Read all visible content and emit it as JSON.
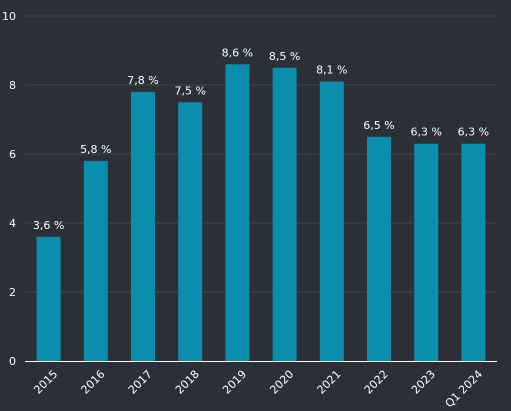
{
  "chart_data": {
    "type": "bar",
    "categories": [
      "2015",
      "2016",
      "2017",
      "2018",
      "2019",
      "2020",
      "2021",
      "2022",
      "2023",
      "Q1 2024"
    ],
    "values": [
      3.6,
      5.8,
      7.8,
      7.5,
      8.6,
      8.5,
      8.1,
      6.5,
      6.3,
      6.3
    ],
    "data_labels": [
      "3,6 %",
      "5,8 %",
      "7,8 %",
      "7,5 %",
      "8,6 %",
      "8,5 %",
      "8,1 %",
      "6,5 %",
      "6,3 %",
      "6,3 %"
    ],
    "y_ticks": [
      0,
      2,
      4,
      6,
      8,
      10
    ],
    "ylim": [
      0,
      10
    ],
    "grid": true,
    "legend": "none",
    "colors": {
      "background": "#2d2f36",
      "bar": "#0a8eab",
      "grid": "#42454d",
      "text": "#ffffff"
    }
  }
}
